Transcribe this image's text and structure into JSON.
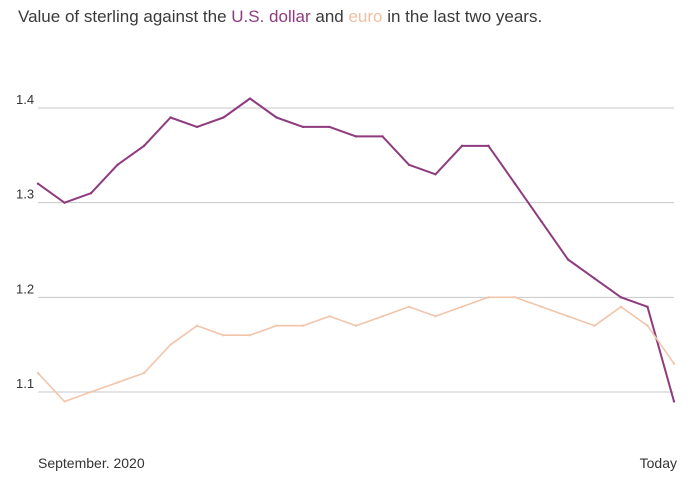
{
  "title": {
    "prefix": "Value of sterling against the ",
    "usd": "U.S. dollar",
    "middle": " and ",
    "eur": "euro",
    "suffix": " in the last two years."
  },
  "colors": {
    "usd": "#8e3b7f",
    "eur": "#f2c5ab",
    "grid": "#c8c8c8",
    "text": "#333333"
  },
  "chart_data": {
    "type": "line",
    "title": "Value of sterling against the U.S. dollar and euro in the last two years.",
    "x_start_label": "September. 2020",
    "x_end_label": "Today",
    "xlabel": "",
    "ylabel": "",
    "ylim": [
      1.08,
      1.43
    ],
    "yticks": [
      1.1,
      1.2,
      1.3,
      1.4
    ],
    "grid": true,
    "x": [
      "2020-09",
      "2020-10",
      "2020-11",
      "2020-12",
      "2021-01",
      "2021-02",
      "2021-03",
      "2021-04",
      "2021-05",
      "2021-06",
      "2021-07",
      "2021-08",
      "2021-09",
      "2021-10",
      "2021-11",
      "2021-12",
      "2022-01",
      "2022-02",
      "2022-03",
      "2022-04",
      "2022-05",
      "2022-06",
      "2022-07",
      "2022-08",
      "2022-09"
    ],
    "series": [
      {
        "name": "U.S. dollar",
        "key": "usd",
        "values": [
          1.32,
          1.3,
          1.31,
          1.34,
          1.36,
          1.39,
          1.38,
          1.39,
          1.41,
          1.39,
          1.38,
          1.38,
          1.37,
          1.37,
          1.34,
          1.33,
          1.36,
          1.36,
          1.32,
          1.28,
          1.24,
          1.22,
          1.2,
          1.19,
          1.09
        ]
      },
      {
        "name": "euro",
        "key": "eur",
        "values": [
          1.12,
          1.09,
          1.1,
          1.11,
          1.12,
          1.15,
          1.17,
          1.16,
          1.16,
          1.17,
          1.17,
          1.18,
          1.17,
          1.18,
          1.19,
          1.18,
          1.19,
          1.2,
          1.2,
          1.19,
          1.18,
          1.17,
          1.19,
          1.17,
          1.13
        ]
      }
    ]
  }
}
